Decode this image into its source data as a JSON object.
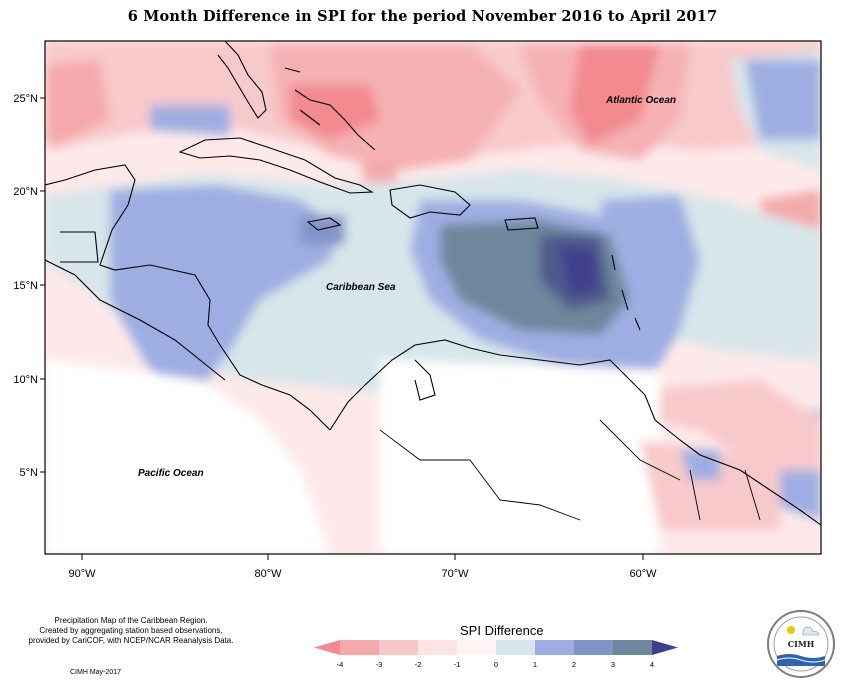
{
  "title": "6 Month Difference in SPI for the period November 2016 to April 2017",
  "map": {
    "latitude_ticks": [
      "25°N",
      "20°N",
      "15°N",
      "10°N",
      "5°N"
    ],
    "longitude_ticks": [
      "90°W",
      "80°W",
      "70°W",
      "60°W"
    ],
    "labels": {
      "atlantic": "Atlantic Ocean",
      "caribbean": "Caribbean Sea",
      "pacific": "Pacific Ocean"
    },
    "extent": {
      "lon": [
        -92.5,
        -50.5
      ],
      "lat": [
        1.5,
        28
      ]
    }
  },
  "legend": {
    "title": "SPI Difference",
    "ticks": [
      "-4",
      "-3",
      "-2",
      "-1",
      "0",
      "1",
      "2",
      "3",
      "4"
    ],
    "colors": [
      "#f28a8f",
      "#f4aaac",
      "#f8c7c9",
      "#fce3e4",
      "#fff4f4",
      "#d7e6ea",
      "#9faee2",
      "#8394c8",
      "#6e879c",
      "#4f5a8c",
      "#3f3f8c"
    ]
  },
  "footer": {
    "note_line1": "Precipitation Map of the Caribbean Region.",
    "note_line2": "Created by aggregating station based observations,",
    "note_line3": "provided by CariCOF, with NCEP/NCAR Reanalysis Data.",
    "credit": "CIMH May-2017"
  },
  "logo": {
    "name": "CIMH"
  }
}
